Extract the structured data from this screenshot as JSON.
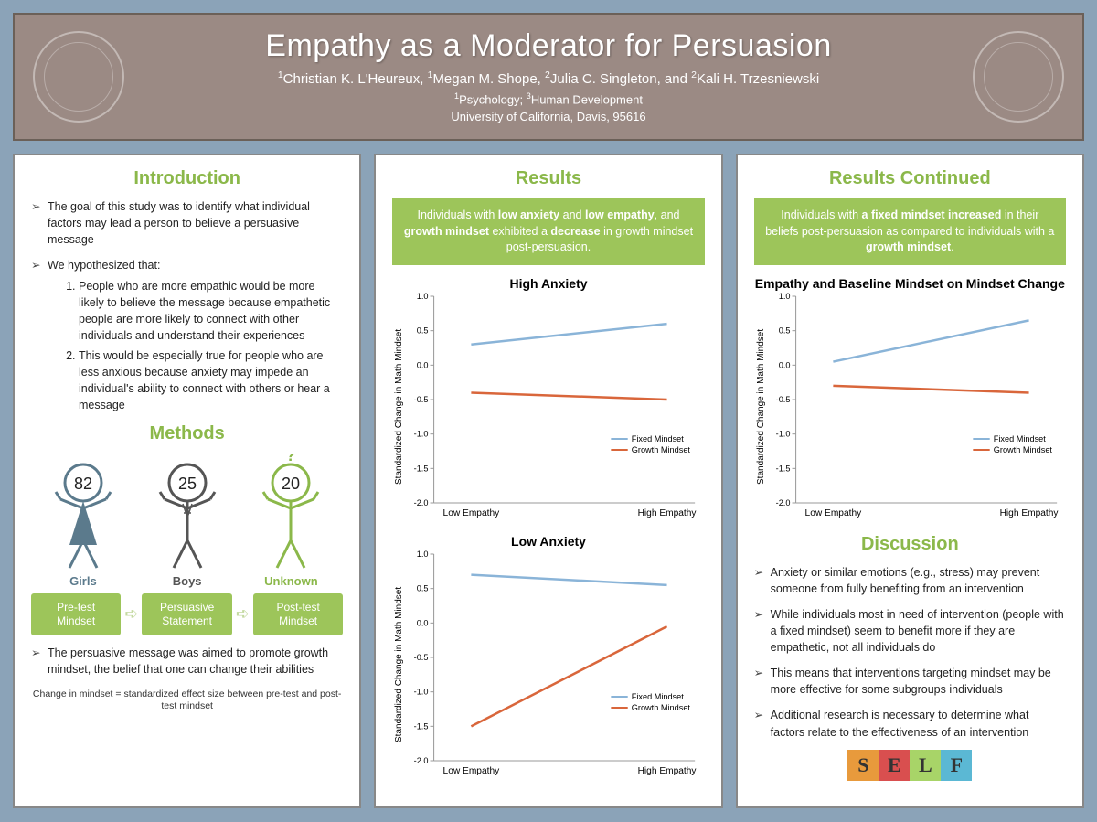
{
  "header": {
    "title": "Empathy as a Moderator for Persuasion",
    "authors_html": "<sup>1</sup>Christian K. L'Heureux, <sup>1</sup>Megan M. Shope,  <sup>2</sup>Julia C. Singleton, and <sup>2</sup>Kali H. Trzesniewski",
    "affil_line1_html": "<sup>1</sup>Psychology; <sup>3</sup>Human Development",
    "affil_line2": "University of California, Davis, 95616"
  },
  "colors": {
    "background": "#8ba3b8",
    "header_bg": "#9b8a84",
    "accent_green": "#8bb84a",
    "box_green": "#9dc55a",
    "fixed_line": "#8ab4d8",
    "growth_line": "#d9663b",
    "girl": "#5b7a8c",
    "boy": "#555555",
    "unknown": "#8bb84a"
  },
  "intro": {
    "title": "Introduction",
    "bullets": [
      "The goal of this study was to identify what individual factors may lead a person to believe a persuasive message",
      "We hypothesized that:"
    ],
    "hypotheses": [
      "People who are more empathic would be more likely to believe the message because empathetic people are more likely to connect with other individuals and understand their experiences",
      "This would be especially true for people who are less anxious because anxiety may impede an individual's ability to connect with others or hear a message"
    ],
    "methods_title": "Methods",
    "figures": [
      {
        "count": "82",
        "label": "Girls",
        "color": "#5b7a8c"
      },
      {
        "count": "25",
        "label": "Boys",
        "color": "#555555"
      },
      {
        "count": "20",
        "label": "Unknown",
        "color": "#8bb84a",
        "question": true
      }
    ],
    "flow": [
      "Pre-test Mindset",
      "Persuasive Statement",
      "Post-test Mindset"
    ],
    "message_bullet": "The persuasive message was aimed to promote growth mindset, the belief that one can change their abilities",
    "footnote": "Change in mindset = standardized effect size between pre-test and post-test mindset"
  },
  "results": {
    "title": "Results",
    "summary_html": "Individuals with <b>low anxiety</b> and <b>low empathy</b>, and <b>growth mindset</b> exhibited a <b>decrease</b> in growth mindset post-persuasion.",
    "y_axis_label": "Standardized Change in Math Mindset",
    "x_categories": [
      "Low Empathy",
      "High Empathy"
    ],
    "ylim": [
      -2.0,
      1.0
    ],
    "yticks": [
      1.0,
      0.5,
      0.0,
      -0.5,
      -1.0,
      -1.5,
      -2.0
    ],
    "legend": [
      {
        "label": "Fixed Mindset",
        "color": "#8ab4d8"
      },
      {
        "label": "Growth Mindset",
        "color": "#d9663b"
      }
    ],
    "charts": [
      {
        "title": "High Anxiety",
        "series": [
          {
            "name": "Fixed Mindset",
            "color": "#8ab4d8",
            "values": [
              0.3,
              0.6
            ]
          },
          {
            "name": "Growth Mindset",
            "color": "#d9663b",
            "values": [
              -0.4,
              -0.5
            ]
          }
        ]
      },
      {
        "title": "Low Anxiety",
        "series": [
          {
            "name": "Fixed Mindset",
            "color": "#8ab4d8",
            "values": [
              0.7,
              0.55
            ]
          },
          {
            "name": "Growth Mindset",
            "color": "#d9663b",
            "values": [
              -1.5,
              -0.05
            ]
          }
        ]
      }
    ]
  },
  "results2": {
    "title": "Results Continued",
    "summary_html": "Individuals with <b>a fixed mindset increased</b> in their beliefs post-persuasion as compared to individuals with a <b>growth mindset</b>.",
    "chart": {
      "title": "Empathy and Baseline Mindset on Mindset Change",
      "series": [
        {
          "name": "Fixed Mindset",
          "color": "#8ab4d8",
          "values": [
            0.05,
            0.65
          ]
        },
        {
          "name": "Growth Mindset",
          "color": "#d9663b",
          "values": [
            -0.3,
            -0.4
          ]
        }
      ]
    },
    "discussion_title": "Discussion",
    "discussion": [
      "Anxiety or similar emotions (e.g., stress) may prevent someone from fully benefiting from an intervention",
      "While individuals most in need of intervention (people with a fixed mindset) seem to benefit more if they are empathetic, not all individuals do",
      "This means that interventions  targeting mindset may be more effective for some subgroups individuals",
      "Additional research is necessary to determine what factors relate to the effectiveness of an intervention"
    ],
    "self_logo": {
      "letters": [
        "S",
        "E",
        "L",
        "F"
      ],
      "colors": [
        "#e89a3c",
        "#d94f4f",
        "#a8d468",
        "#5bb8d4"
      ]
    }
  }
}
